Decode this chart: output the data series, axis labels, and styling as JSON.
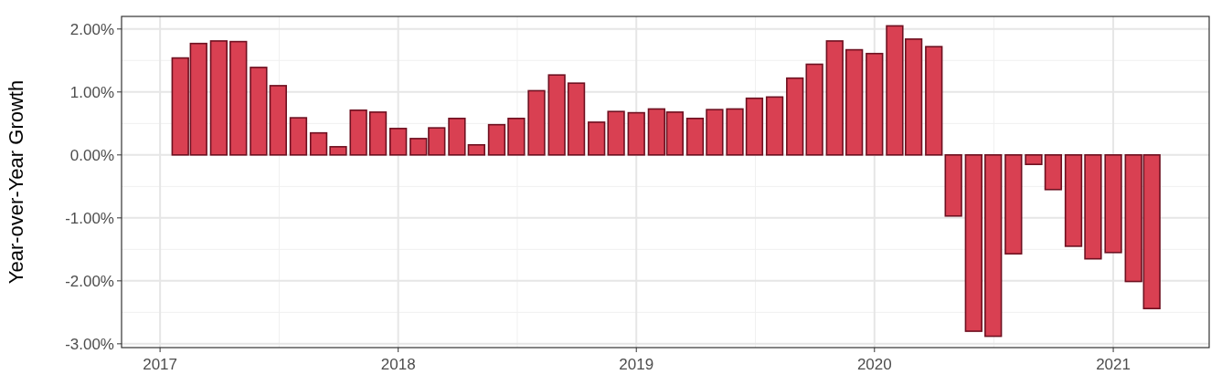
{
  "chart_data": {
    "type": "bar",
    "ylabel": "Year-over-Year Growth",
    "x": [
      "2017-02",
      "2017-03",
      "2017-04",
      "2017-05",
      "2017-06",
      "2017-07",
      "2017-08",
      "2017-09",
      "2017-10",
      "2017-11",
      "2017-12",
      "2018-01",
      "2018-02",
      "2018-03",
      "2018-04",
      "2018-05",
      "2018-06",
      "2018-07",
      "2018-08",
      "2018-09",
      "2018-10",
      "2018-11",
      "2018-12",
      "2019-01",
      "2019-02",
      "2019-03",
      "2019-04",
      "2019-05",
      "2019-06",
      "2019-07",
      "2019-08",
      "2019-09",
      "2019-10",
      "2019-11",
      "2019-12",
      "2020-01",
      "2020-02",
      "2020-03",
      "2020-04",
      "2020-05",
      "2020-06",
      "2020-07",
      "2020-08",
      "2020-09",
      "2020-10",
      "2020-11",
      "2020-12",
      "2021-01",
      "2021-02",
      "2021-03"
    ],
    "values": [
      1.54,
      1.77,
      1.81,
      1.8,
      1.39,
      1.1,
      0.59,
      0.35,
      0.13,
      0.71,
      0.68,
      0.42,
      0.26,
      0.43,
      0.58,
      0.16,
      0.48,
      0.58,
      1.02,
      1.27,
      1.14,
      0.52,
      0.69,
      0.67,
      0.73,
      0.68,
      0.58,
      0.72,
      0.73,
      0.9,
      0.92,
      1.22,
      1.44,
      1.81,
      1.67,
      1.61,
      2.05,
      1.84,
      1.72,
      -0.97,
      -2.8,
      -2.88,
      -1.57,
      -0.15,
      -0.55,
      -1.45,
      -1.65,
      -1.55,
      -2.01,
      -2.44
    ],
    "color": "#d94052",
    "xlim": [
      "2016-11-03",
      "2021-05-28"
    ],
    "xticks": [
      "2017",
      "2018",
      "2019",
      "2020",
      "2021"
    ],
    "ylim": [
      -3.06,
      2.2
    ],
    "yticks": [
      {
        "value": -3,
        "label": "-3.00%"
      },
      {
        "value": -2,
        "label": "-2.00%"
      },
      {
        "value": -1,
        "label": "-1.00%"
      },
      {
        "value": 0,
        "label": "0.00%"
      },
      {
        "value": 1,
        "label": "1.00%"
      },
      {
        "value": 2,
        "label": "2.00%"
      }
    ],
    "grid": true
  }
}
